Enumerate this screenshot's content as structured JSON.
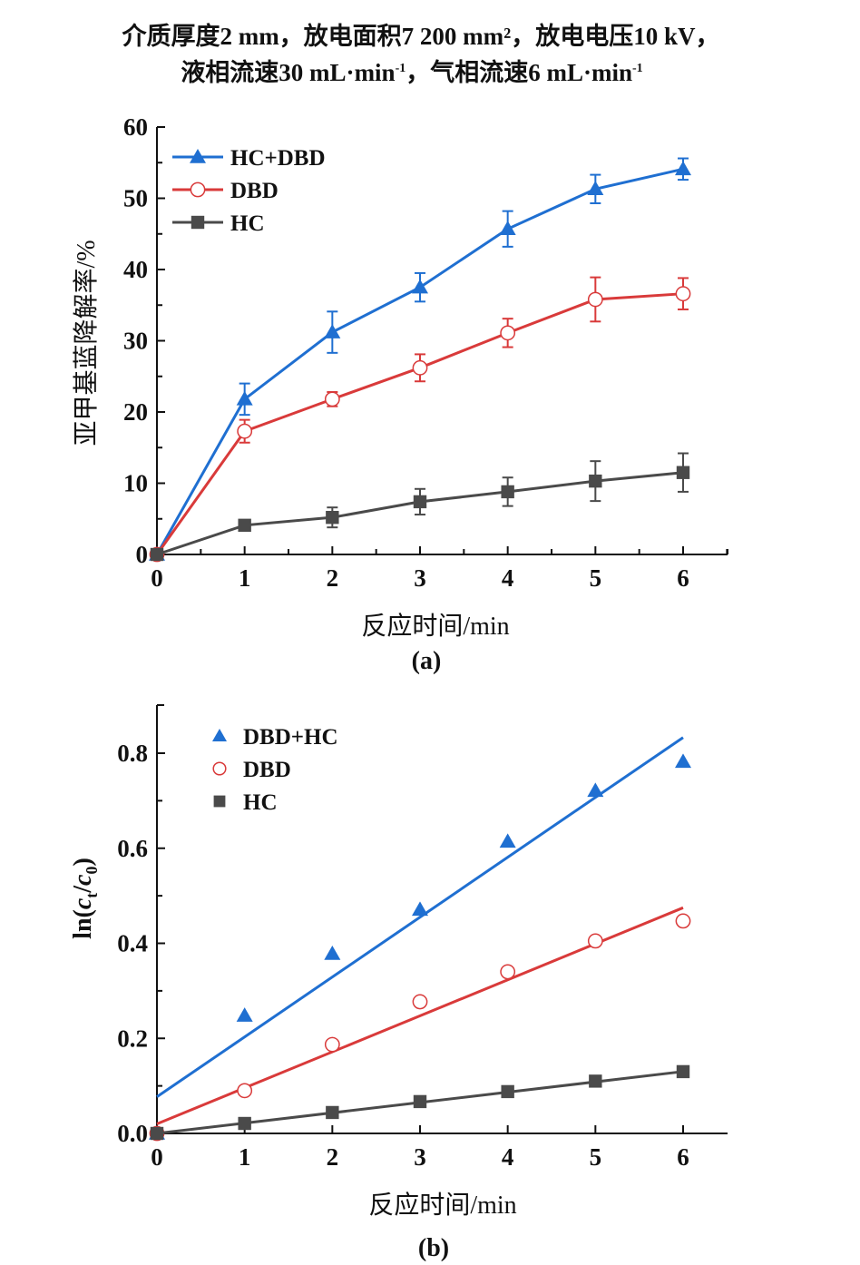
{
  "header": {
    "line1": "介质厚度2 mm，放电面积7 200 mm²，放电电压10 kV，",
    "line2_prefix": "液相流速30 mL·min",
    "line2_sup1": "-1",
    "line2_mid": "，气相流速6 mL·min",
    "line2_sup2": "-1"
  },
  "chart_data": [
    {
      "id": "a",
      "type": "line",
      "panel_label": "(a)",
      "title": "",
      "xlabel": "反应时间/min",
      "ylabel": "亚甲基蓝降解率/%",
      "xlim": [
        0,
        6.5
      ],
      "ylim": [
        0,
        60
      ],
      "xticks": [
        0,
        1,
        2,
        3,
        4,
        5,
        6
      ],
      "yticks": [
        0,
        10,
        20,
        30,
        40,
        50,
        60
      ],
      "xtick_labels": [
        "0",
        "1",
        "2",
        "3",
        "4",
        "5",
        "6"
      ],
      "ytick_labels": [
        "0",
        "10",
        "20",
        "30",
        "40",
        "50",
        "60"
      ],
      "grid": false,
      "legend_position": "top-left",
      "x": [
        0,
        1,
        2,
        3,
        4,
        5,
        6
      ],
      "series": [
        {
          "name": "HC+DBD",
          "marker": "triangle",
          "color": "#1f6fd1",
          "values": [
            0,
            21.8,
            31.2,
            37.5,
            45.7,
            51.3,
            54.1
          ],
          "errors": [
            0,
            2.2,
            2.9,
            2.0,
            2.5,
            2.0,
            1.5
          ]
        },
        {
          "name": "DBD",
          "marker": "open-circle",
          "color": "#d93a3a",
          "values": [
            0,
            17.3,
            21.8,
            26.2,
            31.1,
            35.8,
            36.6
          ],
          "errors": [
            0,
            1.6,
            1.0,
            1.9,
            2.0,
            3.1,
            2.2
          ]
        },
        {
          "name": "HC",
          "marker": "square",
          "color": "#4a4a4a",
          "values": [
            0,
            4.1,
            5.2,
            7.4,
            8.8,
            10.3,
            11.5
          ],
          "errors": [
            0,
            0.5,
            1.4,
            1.8,
            2.0,
            2.8,
            2.7
          ]
        }
      ]
    },
    {
      "id": "b",
      "type": "scatter",
      "panel_label": "(b)",
      "title": "",
      "xlabel": "反应时间/min",
      "ylabel_parts": {
        "prefix": "ln(",
        "c1": "c",
        "sub1": "t",
        "slash": "/",
        "c2": "c",
        "sub2": "0",
        "suffix": ")"
      },
      "xlim": [
        0,
        6.5
      ],
      "ylim": [
        0,
        0.9
      ],
      "xticks": [
        0,
        1,
        2,
        3,
        4,
        5,
        6
      ],
      "yticks": [
        0,
        0.2,
        0.4,
        0.6,
        0.8
      ],
      "xtick_labels": [
        "0",
        "1",
        "2",
        "3",
        "4",
        "5",
        "6"
      ],
      "ytick_labels": [
        "0.0",
        "0.2",
        "0.4",
        "0.6",
        "0.8"
      ],
      "grid": false,
      "legend_position": "top-left",
      "x": [
        0,
        1,
        2,
        3,
        4,
        5,
        6
      ],
      "series": [
        {
          "name": "DBD+HC",
          "marker": "triangle",
          "color": "#1f6fd1",
          "values": [
            0,
            0.248,
            0.378,
            0.471,
            0.614,
            0.721,
            0.782
          ],
          "fit": {
            "intercept": 0.077,
            "slope": 0.126
          }
        },
        {
          "name": "DBD",
          "marker": "open-circle",
          "color": "#d93a3a",
          "values": [
            0,
            0.09,
            0.187,
            0.277,
            0.34,
            0.405,
            0.447
          ],
          "fit": {
            "intercept": 0.02,
            "slope": 0.0758
          }
        },
        {
          "name": "HC",
          "marker": "square",
          "color": "#4a4a4a",
          "values": [
            0,
            0.021,
            0.044,
            0.067,
            0.088,
            0.11,
            0.13
          ],
          "fit": {
            "intercept": 0.0,
            "slope": 0.0217
          }
        }
      ]
    }
  ]
}
